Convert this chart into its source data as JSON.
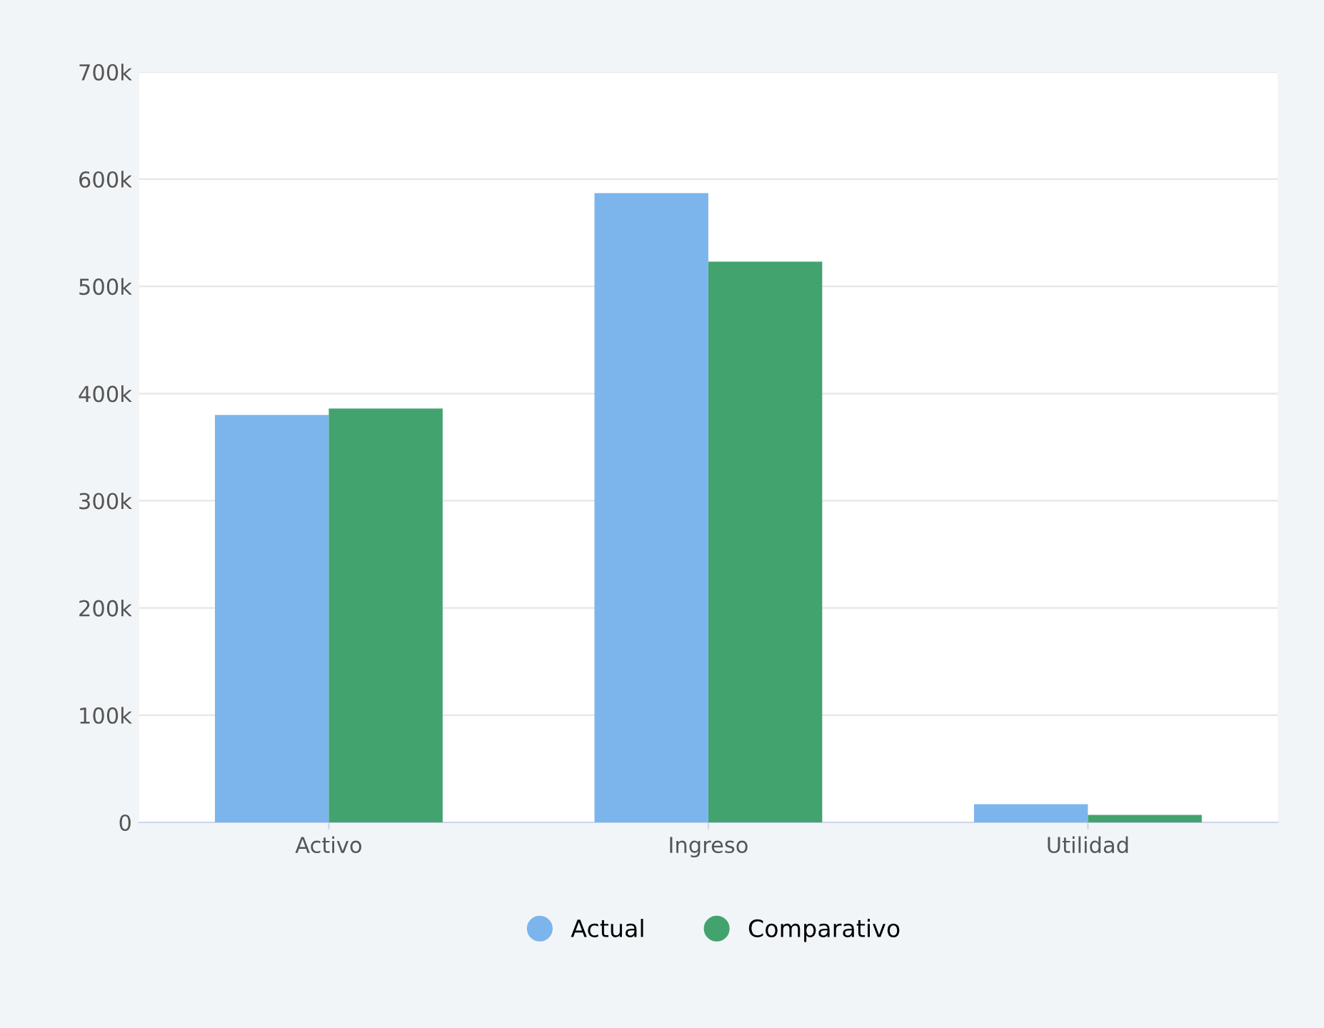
{
  "chart_data": {
    "type": "bar",
    "categories": [
      "Activo",
      "Ingreso",
      "Utilidad"
    ],
    "series": [
      {
        "name": "Actual",
        "color": "#7cb5ec",
        "values": [
          380000,
          587000,
          17000
        ]
      },
      {
        "name": "Comparativo",
        "color": "#43a36f",
        "values": [
          386000,
          523000,
          7000
        ]
      }
    ],
    "ylim": [
      0,
      700000
    ],
    "yticks": [
      0,
      {
        "value": 100000,
        "label": "100k"
      },
      {
        "value": 200000,
        "label": "200k"
      },
      {
        "value": 300000,
        "label": "300k"
      },
      {
        "value": 400000,
        "label": "400k"
      },
      {
        "value": 500000,
        "label": "500k"
      },
      {
        "value": 600000,
        "label": "600k"
      },
      {
        "value": 700000,
        "label": "700k"
      }
    ],
    "grid": "y",
    "legend": "bottom"
  }
}
